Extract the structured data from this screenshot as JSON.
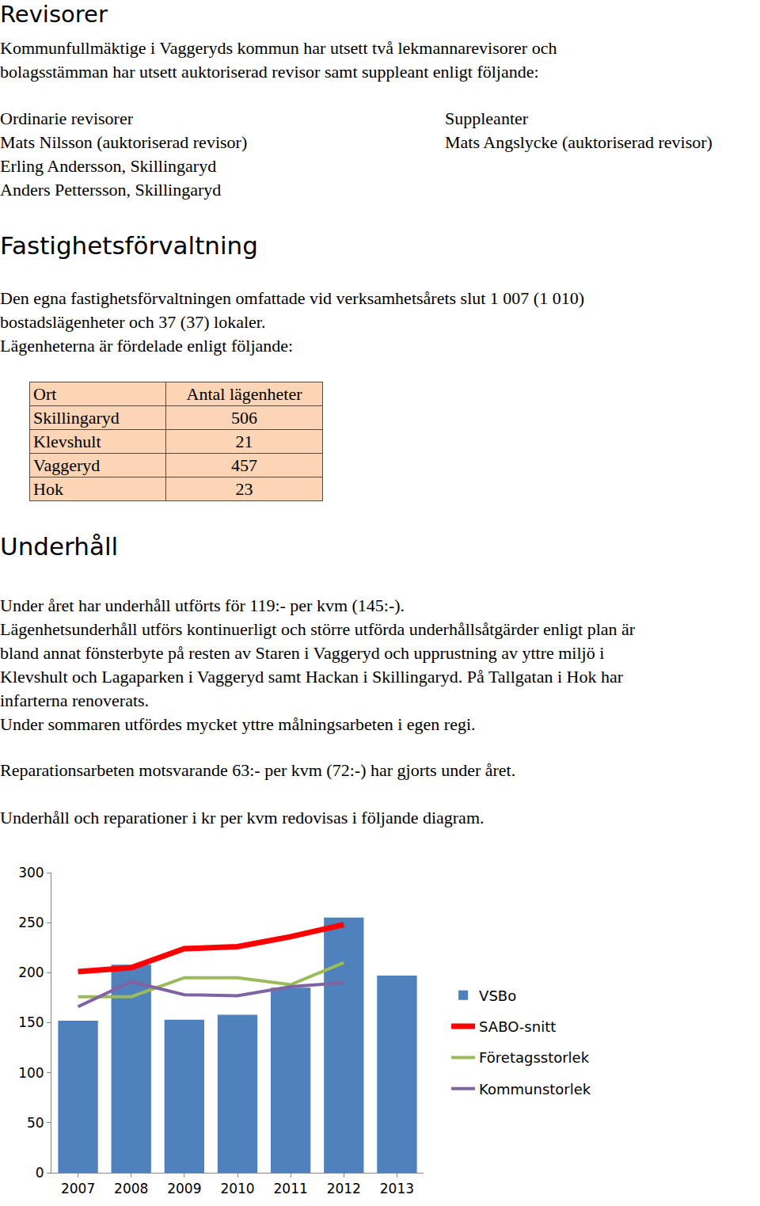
{
  "revisorer": {
    "heading": "Revisorer",
    "intro": [
      "Kommunfullmäktige i Vaggeryds kommun har utsett två lekmannarevisorer och",
      "bolagsstämman har utsett auktoriserad revisor samt suppleant enligt följande:"
    ],
    "ordinarie": {
      "title": "Ordinarie revisorer",
      "names": [
        "Mats Nilsson (auktoriserad revisor)",
        "Erling Andersson, Skillingaryd",
        "Anders Pettersson, Skillingaryd"
      ]
    },
    "suppleanter": {
      "title": "Suppleanter",
      "names": [
        "Mats Angslycke (auktoriserad revisor)"
      ]
    }
  },
  "fastighetsforvaltning": {
    "heading": "Fastighetsförvaltning",
    "lines": [
      "Den egna fastighetsförvaltningen omfattade vid verksamhetsårets slut 1 007 (1 010)",
      "bostadslägenheter och 37 (37) lokaler.",
      "Lägenheterna är fördelade enligt följande:"
    ],
    "table": {
      "header": [
        "Ort",
        "Antal lägenheter"
      ],
      "rows": [
        [
          "Skillingaryd",
          506
        ],
        [
          "Klevshult",
          21
        ],
        [
          "Vaggeryd",
          457
        ],
        [
          "Hok",
          23
        ]
      ]
    }
  },
  "underhall": {
    "heading": "Underhåll",
    "paragraphs": [
      [
        "Under året har underhåll utförts för 119:- per kvm (145:-).",
        "Lägenhetsunderhåll utförs kontinuerligt och större utförda underhållsåtgärder enligt plan är",
        "bland annat fönsterbyte på resten av Staren i Vaggeryd och upprustning av yttre miljö i",
        "Klevshult och Lagaparken i Vaggeryd samt Hackan i Skillingaryd. På Tallgatan i Hok har",
        "infarterna renoverats.",
        "Under sommaren utfördes mycket yttre målningsarbeten i egen regi."
      ],
      [
        "Reparationsarbeten motsvarande 63:- per kvm (72:-) har gjorts under året."
      ],
      [
        "Underhåll och reparationer i kr per kvm redovisas i följande diagram."
      ]
    ]
  },
  "chart_data": {
    "type": "bar",
    "categories": [
      "2007",
      "2008",
      "2009",
      "2010",
      "2011",
      "2012",
      "2013"
    ],
    "series": [
      {
        "name": "VSBo",
        "type": "bar",
        "color": "#4f81bd",
        "values": [
          152,
          208,
          153,
          158,
          185,
          255,
          197
        ]
      },
      {
        "name": "SABO-snitt",
        "type": "line",
        "color": "#ff0000",
        "values": [
          201,
          205,
          224,
          226,
          236,
          248,
          null
        ]
      },
      {
        "name": "Företagsstorlek",
        "type": "line",
        "color": "#9bbb59",
        "values": [
          176,
          176,
          195,
          195,
          188,
          210,
          null
        ]
      },
      {
        "name": "Kommunstorlek",
        "type": "line",
        "color": "#8064a2",
        "values": [
          166,
          191,
          178,
          177,
          186,
          190,
          null
        ]
      }
    ],
    "ylim": [
      0,
      300
    ],
    "yticks": [
      0,
      50,
      100,
      150,
      200,
      250,
      300
    ],
    "grid": false,
    "legend": "right"
  }
}
